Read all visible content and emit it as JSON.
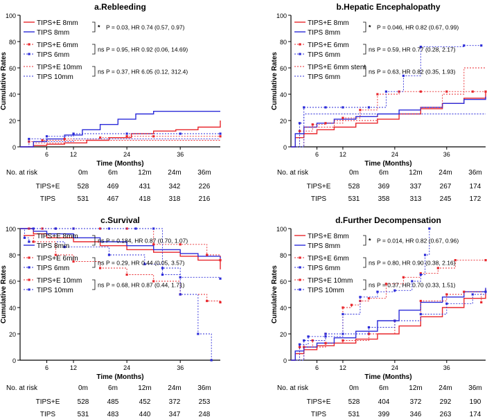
{
  "colors": {
    "red": "#e8262b",
    "blue": "#2b2bd9",
    "axis": "#000000"
  },
  "chart_data": [
    {
      "type": "line",
      "title": "a.Rebleeding",
      "xlabel": "Time (Months)",
      "ylabel": "Cumulative Rates",
      "xlim": [
        0,
        45
      ],
      "ylim": [
        0,
        100
      ],
      "xticks": [
        "6",
        "12",
        "24",
        "36"
      ],
      "yticks": [
        "0",
        "20",
        "40",
        "60",
        "80",
        "100"
      ],
      "series": [
        {
          "name": "TIPS+E 8mm",
          "color": "red",
          "style": "solid",
          "marker": false,
          "x": [
            0,
            3,
            6,
            10,
            15,
            20,
            25,
            30,
            35,
            40,
            45
          ],
          "y": [
            0,
            1,
            2,
            3,
            5,
            7,
            10,
            12,
            13,
            15,
            20
          ]
        },
        {
          "name": "TIPS 8mm",
          "color": "blue",
          "style": "solid",
          "marker": false,
          "x": [
            0,
            3,
            6,
            10,
            14,
            18,
            22,
            26,
            30,
            35,
            40,
            45
          ],
          "y": [
            0,
            4,
            6,
            9,
            13,
            17,
            21,
            25,
            27,
            27,
            27,
            27
          ]
        },
        {
          "name": "TIPS+E 6mm",
          "color": "red",
          "style": "dot",
          "marker": true,
          "x": [
            0,
            2,
            5,
            10,
            18,
            24,
            30,
            45
          ],
          "y": [
            0,
            4,
            5,
            6,
            7,
            8,
            8,
            8
          ]
        },
        {
          "name": "TIPS 6mm",
          "color": "blue",
          "style": "dot",
          "marker": true,
          "x": [
            0,
            2,
            6,
            12,
            24,
            36,
            45
          ],
          "y": [
            0,
            6,
            8,
            10,
            10,
            10,
            10
          ]
        },
        {
          "name": "TIPS+E 10mm",
          "color": "red",
          "style": "dot",
          "marker": false,
          "x": [
            0,
            3,
            10,
            20,
            30,
            45
          ],
          "y": [
            0,
            3,
            5,
            5,
            5,
            5
          ]
        },
        {
          "name": "TIPS 10mm",
          "color": "blue",
          "style": "dot",
          "marker": false,
          "x": [
            0,
            3,
            12,
            24,
            45
          ],
          "y": [
            0,
            4,
            6,
            6,
            6
          ]
        }
      ],
      "annotations": [
        {
          "sig": "*",
          "text": "P = 0.03, HR 0.74 (0.57, 0.97)"
        },
        {
          "sig": "ns",
          "text": "P = 0.95, HR 0.92 (0.06, 14.69)"
        },
        {
          "sig": "ns",
          "text": "P = 0.37, HR 6.05 (0.12, 312.4)"
        }
      ],
      "risk_table": {
        "label": "No. at risk",
        "headers": [
          "0m",
          "6m",
          "12m",
          "24m",
          "36m"
        ],
        "rows": [
          {
            "group": "TIPS+E",
            "values": [
              "528",
              "469",
              "431",
              "342",
              "226"
            ]
          },
          {
            "group": "TIPS",
            "values": [
              "531",
              "467",
              "418",
              "318",
              "216"
            ]
          }
        ]
      }
    },
    {
      "type": "line",
      "title": "b.Hepatic Encephalopathy",
      "xlabel": "Time (Months)",
      "ylabel": "Cumulative Rates",
      "xlim": [
        0,
        45
      ],
      "ylim": [
        0,
        100
      ],
      "xticks": [
        "6",
        "12",
        "24",
        "36"
      ],
      "yticks": [
        "0",
        "20",
        "40",
        "60",
        "80",
        "100"
      ],
      "series": [
        {
          "name": "TIPS+E 8mm",
          "color": "red",
          "style": "solid",
          "marker": false,
          "x": [
            0,
            1,
            3,
            6,
            10,
            15,
            20,
            25,
            30,
            35,
            40,
            45
          ],
          "y": [
            0,
            7,
            10,
            13,
            15,
            18,
            21,
            25,
            29,
            33,
            37,
            42
          ]
        },
        {
          "name": "TIPS 8mm",
          "color": "blue",
          "style": "solid",
          "marker": false,
          "x": [
            0,
            1,
            3,
            6,
            10,
            15,
            20,
            25,
            30,
            35,
            40,
            45
          ],
          "y": [
            0,
            10,
            15,
            18,
            21,
            23,
            25,
            28,
            30,
            33,
            36,
            38
          ]
        },
        {
          "name": "TIPS+E 6mm",
          "color": "red",
          "style": "dot",
          "marker": true,
          "x": [
            0,
            2,
            5,
            8,
            12,
            16,
            20,
            25,
            30,
            36,
            42,
            45
          ],
          "y": [
            0,
            12,
            17,
            18,
            22,
            28,
            40,
            42,
            42,
            42,
            42,
            42
          ]
        },
        {
          "name": "TIPS 6mm",
          "color": "blue",
          "style": "dot",
          "marker": true,
          "x": [
            0,
            2,
            3,
            8,
            12,
            18,
            22,
            26,
            30,
            40,
            44
          ],
          "y": [
            0,
            18,
            30,
            30,
            30,
            30,
            42,
            54,
            76,
            77,
            77
          ]
        },
        {
          "name": "TIPS+E 6mm stent",
          "color": "red",
          "style": "dot",
          "marker": false,
          "x": [
            0,
            3,
            10,
            20,
            30,
            35,
            40,
            45
          ],
          "y": [
            0,
            15,
            20,
            25,
            30,
            40,
            60,
            60
          ]
        },
        {
          "name": "TIPS 6mm",
          "color": "blue",
          "style": "dot",
          "marker": false,
          "x": [
            0,
            3,
            12,
            24,
            36,
            45
          ],
          "y": [
            0,
            25,
            25,
            25,
            25,
            25
          ]
        }
      ],
      "annotations": [
        {
          "sig": "*",
          "text": "P = 0.046, HR 0.82 (0.67, 0.99)"
        },
        {
          "sig": "ns",
          "text": "P = 0.59, HR 0.77 (0.28, 2.17)"
        },
        {
          "sig": "ns",
          "text": "P = 0.63, HR 0.82 (0.35, 1.93)"
        }
      ],
      "risk_table": {
        "label": "No. at risk",
        "headers": [
          "0m",
          "6m",
          "12m",
          "24m",
          "36m"
        ],
        "rows": [
          {
            "group": "TIPS+E",
            "values": [
              "528",
              "369",
              "337",
              "267",
              "174"
            ]
          },
          {
            "group": "TIPS",
            "values": [
              "531",
              "358",
              "313",
              "245",
              "172"
            ]
          }
        ]
      }
    },
    {
      "type": "line",
      "title": "c.Survival",
      "xlabel": "Time (Months)",
      "ylabel": "Cumulative Rates",
      "xlim": [
        0,
        45
      ],
      "ylim": [
        0,
        100
      ],
      "xticks": [
        "6",
        "12",
        "24",
        "36"
      ],
      "yticks": [
        "0",
        "20",
        "40",
        "60",
        "80",
        "100"
      ],
      "series": [
        {
          "name": "TIPS+E 8mm",
          "color": "red",
          "style": "solid",
          "marker": false,
          "x": [
            0,
            3,
            6,
            12,
            18,
            24,
            30,
            36,
            40,
            45
          ],
          "y": [
            100,
            96,
            93,
            90,
            87,
            84,
            82,
            79,
            76,
            69
          ]
        },
        {
          "name": "TIPS 8mm",
          "color": "blue",
          "style": "solid",
          "marker": false,
          "x": [
            0,
            3,
            6,
            12,
            18,
            24,
            30,
            36,
            40,
            45
          ],
          "y": [
            100,
            98,
            96,
            93,
            90,
            87,
            84,
            81,
            79,
            77
          ]
        },
        {
          "name": "TIPS+E 6mm",
          "color": "red",
          "style": "dot",
          "marker": true,
          "x": [
            0,
            2,
            5,
            8,
            12,
            18,
            24,
            30,
            36,
            42,
            45
          ],
          "y": [
            100,
            100,
            100,
            100,
            100,
            100,
            100,
            88,
            88,
            80,
            76
          ]
        },
        {
          "name": "TIPS 6mm",
          "color": "blue",
          "style": "dot",
          "marker": true,
          "x": [
            0,
            1,
            2,
            10,
            20,
            28,
            32,
            36,
            45
          ],
          "y": [
            100,
            93,
            90,
            86,
            80,
            73,
            65,
            63,
            62
          ]
        },
        {
          "name": "TIPS+E 10mm",
          "color": "red",
          "style": "dot",
          "marker": true,
          "x": [
            0,
            3,
            8,
            12,
            18,
            24,
            30,
            36,
            42,
            45
          ],
          "y": [
            100,
            90,
            80,
            75,
            70,
            65,
            60,
            50,
            45,
            44
          ]
        },
        {
          "name": "TIPS 10mm",
          "color": "blue",
          "style": "dot",
          "marker": true,
          "x": [
            0,
            3,
            8,
            12,
            20,
            26,
            30,
            32,
            36,
            40,
            43
          ],
          "y": [
            100,
            100,
            100,
            100,
            100,
            100,
            100,
            70,
            50,
            20,
            0
          ]
        }
      ],
      "annotations": [
        {
          "sig": "ns",
          "text": "P = 0.184, HR 0.87 (0.70, 1.07)"
        },
        {
          "sig": "ns",
          "text": "P = 0.29, HR 0.44 (0.05, 3.57)"
        },
        {
          "sig": "ns",
          "text": "P = 0.68, HR 0.87 (0.44, 1.71)"
        }
      ],
      "risk_table": {
        "label": "No. at risk",
        "headers": [
          "0m",
          "6m",
          "12m",
          "24m",
          "36m"
        ],
        "rows": [
          {
            "group": "TIPS+E",
            "values": [
              "528",
              "485",
              "452",
              "372",
              "253"
            ]
          },
          {
            "group": "TIPS",
            "values": [
              "531",
              "483",
              "440",
              "347",
              "248"
            ]
          }
        ]
      }
    },
    {
      "type": "line",
      "title": "d.Further Decompensation",
      "xlabel": "Time (Months)",
      "ylabel": "Cumulative Rates",
      "xlim": [
        0,
        45
      ],
      "ylim": [
        0,
        100
      ],
      "xticks": [
        "6",
        "12",
        "24",
        "36"
      ],
      "yticks": [
        "0",
        "20",
        "40",
        "60",
        "80",
        "100"
      ],
      "series": [
        {
          "name": "TIPS+E 8mm",
          "color": "red",
          "style": "solid",
          "marker": false,
          "x": [
            0,
            1,
            3,
            6,
            10,
            15,
            20,
            25,
            30,
            35,
            40,
            45
          ],
          "y": [
            0,
            5,
            8,
            11,
            13,
            16,
            20,
            26,
            33,
            40,
            47,
            54
          ]
        },
        {
          "name": "TIPS 8mm",
          "color": "blue",
          "style": "solid",
          "marker": false,
          "x": [
            0,
            1,
            3,
            6,
            10,
            15,
            20,
            25,
            30,
            35,
            40,
            45
          ],
          "y": [
            0,
            7,
            10,
            13,
            17,
            22,
            30,
            38,
            44,
            48,
            52,
            55
          ]
        },
        {
          "name": "TIPS+E 6mm",
          "color": "red",
          "style": "dot",
          "marker": true,
          "x": [
            0,
            2,
            5,
            8,
            12,
            14,
            16,
            18,
            22,
            26,
            30,
            34,
            38,
            45
          ],
          "y": [
            0,
            10,
            15,
            20,
            40,
            42,
            45,
            47,
            58,
            63,
            66,
            70,
            76,
            76
          ]
        },
        {
          "name": "TIPS 6mm",
          "color": "blue",
          "style": "dot",
          "marker": true,
          "x": [
            0,
            2,
            4,
            8,
            12,
            16,
            20,
            24,
            28,
            30,
            31,
            32
          ],
          "y": [
            0,
            12,
            18,
            20,
            35,
            48,
            52,
            53,
            60,
            65,
            80,
            100
          ]
        },
        {
          "name": "TIPS+E 10mm",
          "color": "red",
          "style": "dot",
          "marker": true,
          "x": [
            0,
            3,
            8,
            12,
            18,
            24,
            30,
            36,
            40,
            44
          ],
          "y": [
            0,
            10,
            13,
            15,
            20,
            30,
            45,
            50,
            52,
            44
          ]
        },
        {
          "name": "TIPS 10mm",
          "color": "blue",
          "style": "dot",
          "marker": true,
          "x": [
            0,
            3,
            8,
            12,
            18,
            24,
            30,
            36,
            42,
            45
          ],
          "y": [
            0,
            15,
            18,
            20,
            25,
            30,
            35,
            43,
            50,
            52
          ]
        }
      ],
      "annotations": [
        {
          "sig": "*",
          "text": "P = 0.014, HR 0.82 (0.67, 0.96)"
        },
        {
          "sig": "ns",
          "text": "P = 0.80, HR 0.90 (0.38, 2.16)"
        },
        {
          "sig": "ns",
          "text": "P = 0.37, HR 0.70 (0.33, 1.51)"
        }
      ],
      "risk_table": {
        "label": "No. at risk",
        "headers": [
          "0m",
          "6m",
          "12m",
          "24m",
          "36m"
        ],
        "rows": [
          {
            "group": "TIPS+E",
            "values": [
              "528",
              "404",
              "372",
              "292",
              "190"
            ]
          },
          {
            "group": "TIPS",
            "values": [
              "531",
              "399",
              "346",
              "263",
              "174"
            ]
          }
        ]
      }
    }
  ]
}
